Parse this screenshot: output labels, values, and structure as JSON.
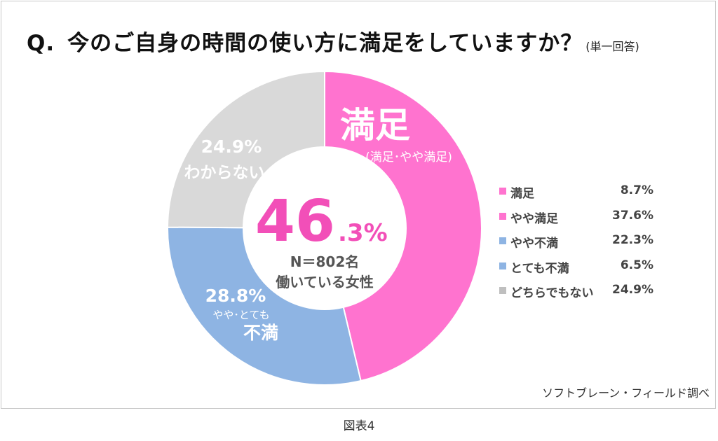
{
  "title": {
    "q": "Q.",
    "main": "今のご自身の時間の使い方に満足をしていますか？",
    "note": "(単一回答)"
  },
  "center": {
    "big_number": "46",
    "decimal": ".3%",
    "n_label": "N＝802名",
    "population": "働いている女性"
  },
  "segment_labels": {
    "satisfied_heading": "満足",
    "satisfied_sub": "(満足･やや満足)",
    "dissatisfied_pct": "28.8%",
    "dissatisfied_sub": "やや･とても",
    "dissatisfied_heading": "不満",
    "neutral_pct": "24.9%",
    "neutral_heading": "わからない"
  },
  "legend": [
    {
      "label": "満足",
      "value": "8.7%",
      "color": "#ff73cf"
    },
    {
      "label": "やや満足",
      "value": "37.6%",
      "color": "#ff73cf"
    },
    {
      "label": "やや不満",
      "value": "22.3%",
      "color": "#8eb4e3"
    },
    {
      "label": "とても不満",
      "value": "6.5%",
      "color": "#8eb4e3"
    },
    {
      "label": "どちらでもない",
      "value": "24.9%",
      "color": "#bfbfbf"
    }
  ],
  "source": "ソフトブレーン・フィールド調べ",
  "caption": "図表4",
  "colors": {
    "satisfied": "#ff73cf",
    "dissatisfied": "#8eb4e3",
    "neutral": "#d9d9d9",
    "center_text": "#f24fb8"
  },
  "chart_data": {
    "type": "pie",
    "title": "今のご自身の時間の使い方に満足をしていますか？",
    "categories": [
      "満足(満足･やや満足)",
      "やや･とても不満",
      "わからない"
    ],
    "values": [
      46.3,
      28.8,
      24.9
    ],
    "unit": "%",
    "n": 802,
    "breakdown": [
      {
        "label": "満足",
        "value": 8.7
      },
      {
        "label": "やや満足",
        "value": 37.6
      },
      {
        "label": "やや不満",
        "value": 22.3
      },
      {
        "label": "とても不満",
        "value": 6.5
      },
      {
        "label": "どちらでもない",
        "value": 24.9
      }
    ],
    "legend_position": "right"
  }
}
